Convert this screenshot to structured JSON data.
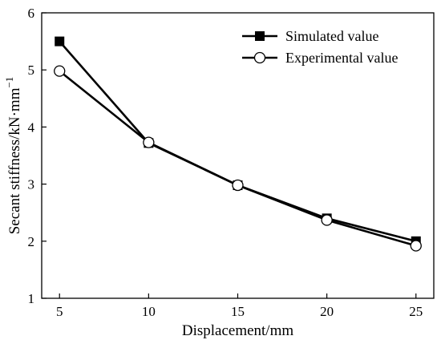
{
  "chart_data": {
    "type": "line",
    "xlabel": "Displacement/mm",
    "ylabel": "Secant stiffness/kN·mm",
    "ylabel_superscript": "−1",
    "x": [
      5,
      10,
      15,
      20,
      25
    ],
    "xticks": [
      "5",
      "10",
      "15",
      "20",
      "25"
    ],
    "yticks": [
      "1",
      "2",
      "3",
      "4",
      "5",
      "6"
    ],
    "xlim": [
      4,
      26
    ],
    "ylim": [
      1,
      6
    ],
    "legend_position": "top-right",
    "series": [
      {
        "name": "Simulated value",
        "marker": "filled-square",
        "values": [
          5.5,
          3.72,
          2.98,
          2.4,
          2.0
        ]
      },
      {
        "name": "Experimental value",
        "marker": "open-circle",
        "values": [
          4.98,
          3.73,
          2.98,
          2.37,
          1.92
        ]
      }
    ]
  }
}
